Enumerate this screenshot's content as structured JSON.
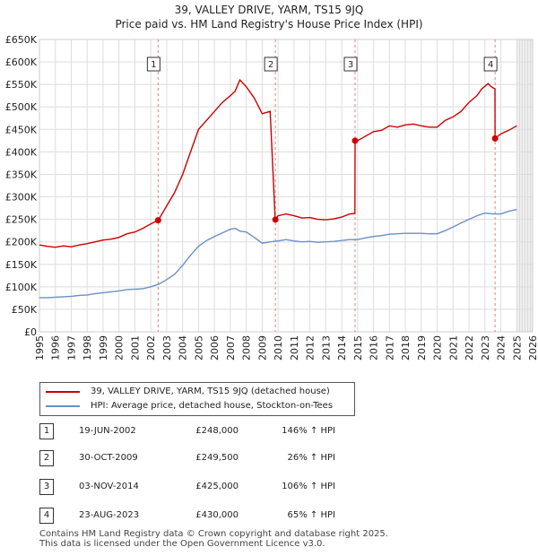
{
  "title_line1": "39, VALLEY DRIVE, YARM, TS15 9JQ",
  "title_line2": "Price paid vs. HM Land Registry's House Price Index (HPI)",
  "legend": {
    "red_label": "39, VALLEY DRIVE, YARM, TS15 9JQ (detached house)",
    "blue_label": "HPI: Average price, detached house, Stockton-on-Tees"
  },
  "colors": {
    "red": "#cc0000",
    "blue": "#6a8fc7",
    "grid": "#dddddd",
    "event": "#e08080"
  },
  "sales": [
    {
      "num": "1",
      "date": "19-JUN-2002",
      "price": "£248,000",
      "hpi": "146% ↑ HPI"
    },
    {
      "num": "2",
      "date": "30-OCT-2009",
      "price": "£249,500",
      "hpi": "26% ↑ HPI"
    },
    {
      "num": "3",
      "date": "03-NOV-2014",
      "price": "£425,000",
      "hpi": "106% ↑ HPI"
    },
    {
      "num": "4",
      "date": "23-AUG-2023",
      "price": "£430,000",
      "hpi": "65% ↑ HPI"
    }
  ],
  "footer_line1": "Contains HM Land Registry data © Crown copyright and database right 2025.",
  "footer_line2": "This data is licensed under the Open Government Licence v3.0.",
  "chart_data": {
    "type": "line",
    "title": "39, VALLEY DRIVE, YARM, TS15 9JQ",
    "subtitle": "Price paid vs. HM Land Registry's House Price Index (HPI)",
    "xlim": [
      1995,
      2026
    ],
    "ylim": [
      0,
      650000
    ],
    "x_ticks": [
      1995,
      1996,
      1997,
      1998,
      1999,
      2000,
      2001,
      2002,
      2003,
      2004,
      2005,
      2006,
      2007,
      2008,
      2009,
      2010,
      2011,
      2012,
      2013,
      2014,
      2015,
      2016,
      2017,
      2018,
      2019,
      2020,
      2021,
      2022,
      2023,
      2024,
      2025,
      2026
    ],
    "y_ticks": [
      0,
      50000,
      100000,
      150000,
      200000,
      250000,
      300000,
      350000,
      400000,
      450000,
      500000,
      550000,
      600000,
      650000
    ],
    "y_tick_labels": [
      "£0",
      "£50K",
      "£100K",
      "£150K",
      "£200K",
      "£250K",
      "£300K",
      "£350K",
      "£400K",
      "£450K",
      "£500K",
      "£550K",
      "£600K",
      "£650K"
    ],
    "future_shade_from": 2025.0,
    "series": [
      {
        "name": "39, VALLEY DRIVE, YARM, TS15 9JQ (detached house)",
        "color": "#cc0000",
        "x": [
          1995,
          1995.5,
          1996,
          1996.5,
          1997,
          1997.5,
          1998,
          1998.5,
          1999,
          1999.5,
          2000,
          2000.5,
          2001,
          2001.5,
          2002,
          2002.46,
          2002.47,
          2003,
          2003.5,
          2004,
          2004.5,
          2005,
          2005.5,
          2006,
          2006.5,
          2007,
          2007.3,
          2007.6,
          2008,
          2008.5,
          2009,
          2009.5,
          2009.82,
          2009.83,
          2010,
          2010.5,
          2011,
          2011.5,
          2012,
          2012.5,
          2013,
          2013.5,
          2014,
          2014.5,
          2014.83,
          2014.84,
          2015,
          2015.5,
          2016,
          2016.5,
          2017,
          2017.5,
          2018,
          2018.5,
          2019,
          2019.5,
          2020,
          2020.5,
          2021,
          2021.5,
          2022,
          2022.5,
          2022.8,
          2023.2,
          2023.4,
          2023.63,
          2023.64,
          2024,
          2024.5,
          2025
        ],
        "y": [
          193000,
          190000,
          188000,
          191000,
          189000,
          193000,
          196000,
          200000,
          204000,
          206000,
          210000,
          218000,
          222000,
          230000,
          240000,
          248000,
          248000,
          280000,
          310000,
          350000,
          400000,
          450000,
          470000,
          490000,
          510000,
          525000,
          535000,
          560000,
          545000,
          520000,
          485000,
          490000,
          249500,
          249500,
          258000,
          262000,
          258000,
          253000,
          254000,
          250000,
          249000,
          251000,
          255000,
          262000,
          263000,
          425000,
          425000,
          435000,
          445000,
          448000,
          458000,
          455000,
          460000,
          462000,
          458000,
          455000,
          455000,
          470000,
          478000,
          490000,
          510000,
          525000,
          540000,
          552000,
          545000,
          540000,
          430000,
          440000,
          448000,
          458000
        ]
      },
      {
        "name": "HPI: Average price, detached house, Stockton-on-Tees",
        "color": "#6a8fc7",
        "x": [
          1995,
          1995.5,
          1996,
          1996.5,
          1997,
          1997.5,
          1998,
          1998.5,
          1999,
          1999.5,
          2000,
          2000.5,
          2001,
          2001.5,
          2002,
          2002.5,
          2003,
          2003.5,
          2004,
          2004.5,
          2005,
          2005.5,
          2006,
          2006.5,
          2007,
          2007.3,
          2007.6,
          2008,
          2008.5,
          2009,
          2009.5,
          2010,
          2010.5,
          2011,
          2011.5,
          2012,
          2012.5,
          2013,
          2013.5,
          2014,
          2014.5,
          2015,
          2015.5,
          2016,
          2016.5,
          2017,
          2017.5,
          2018,
          2018.5,
          2019,
          2019.5,
          2020,
          2020.5,
          2021,
          2021.5,
          2022,
          2022.5,
          2023,
          2023.5,
          2024,
          2024.5,
          2025
        ],
        "y": [
          76000,
          76000,
          77000,
          78000,
          79000,
          81000,
          82000,
          85000,
          87000,
          89000,
          91000,
          94000,
          95000,
          96000,
          100000,
          106000,
          116000,
          128000,
          148000,
          170000,
          190000,
          203000,
          212000,
          220000,
          228000,
          230000,
          224000,
          222000,
          210000,
          197000,
          200000,
          202000,
          205000,
          202000,
          200000,
          201000,
          199000,
          200000,
          201000,
          203000,
          205000,
          205000,
          209000,
          212000,
          214000,
          217000,
          218000,
          219000,
          219000,
          219000,
          218000,
          218000,
          225000,
          233000,
          242000,
          250000,
          258000,
          264000,
          262000,
          262000,
          268000,
          272000
        ]
      }
    ],
    "events": [
      {
        "label": "1",
        "x": 2002.46,
        "y": 248000
      },
      {
        "label": "2",
        "x": 2009.83,
        "y": 249500
      },
      {
        "label": "3",
        "x": 2014.84,
        "y": 425000
      },
      {
        "label": "4",
        "x": 2023.64,
        "y": 430000
      }
    ]
  }
}
